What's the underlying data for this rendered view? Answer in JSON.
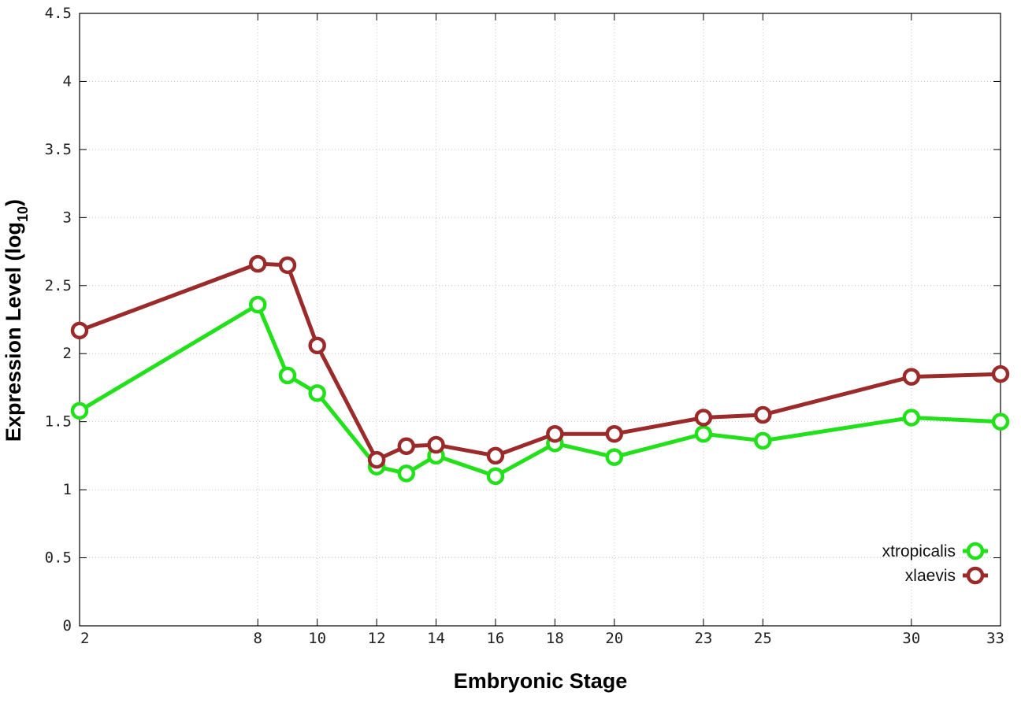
{
  "chart_data": {
    "type": "line",
    "title": "",
    "xlabel": "Embryonic Stage",
    "ylabel": {
      "main": "Expression Level (log",
      "subscript": "10",
      "close": ")"
    },
    "x_ticks": [
      "2",
      "8",
      "10",
      "12",
      "14",
      "16",
      "18",
      "20",
      "23",
      "25",
      "30",
      "33"
    ],
    "x_tick_values": [
      2,
      8,
      10,
      12,
      14,
      16,
      18,
      20,
      23,
      25,
      30,
      33
    ],
    "y_ticks": [
      "0",
      "0.5",
      "1",
      "1.5",
      "2",
      "2.5",
      "3",
      "3.5",
      "4",
      "4.5"
    ],
    "y_tick_values": [
      0,
      0.5,
      1,
      1.5,
      2,
      2.5,
      3,
      3.5,
      4,
      4.5
    ],
    "xlim": [
      2,
      33
    ],
    "ylim": [
      0,
      4.5
    ],
    "grid": true,
    "legend_position": "bottom-right",
    "x": [
      2,
      8,
      9,
      10,
      12,
      13,
      14,
      16,
      18,
      20,
      23,
      25,
      30,
      33
    ],
    "series": [
      {
        "name": "xtropicalis",
        "color": "#22e01a",
        "values": [
          1.58,
          2.36,
          1.84,
          1.71,
          1.17,
          1.12,
          1.25,
          1.1,
          1.34,
          1.24,
          1.41,
          1.36,
          1.53,
          1.5
        ]
      },
      {
        "name": "xlaevis",
        "color": "#9b2a2a",
        "values": [
          2.17,
          2.66,
          2.65,
          2.06,
          1.22,
          1.32,
          1.33,
          1.25,
          1.41,
          1.41,
          1.53,
          1.55,
          1.83,
          1.85
        ]
      }
    ]
  }
}
